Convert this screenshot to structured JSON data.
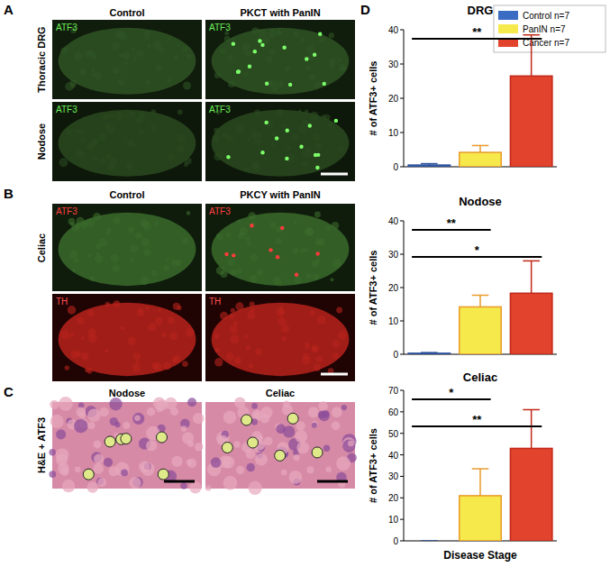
{
  "panels": {
    "A": {
      "label": "A",
      "columns": [
        "Control",
        "PKCT with PanIN"
      ],
      "rows": [
        "Thoracic DRG",
        "Nodose"
      ],
      "stain": "ATF3"
    },
    "B": {
      "label": "B",
      "columns": [
        "Control",
        "PKCY with PanIN"
      ],
      "row": "Celiac",
      "stains": [
        "ATF3",
        "TH"
      ]
    },
    "C": {
      "label": "C",
      "columns": [
        "Nodose",
        "Celiac"
      ],
      "row": "H&E + ATF3"
    },
    "D": {
      "label": "D"
    }
  },
  "legend_entries": [
    {
      "label": "Control n=7",
      "color": "#3b6cc4"
    },
    {
      "label": "PanIN n=7",
      "color": "#f5e94c"
    },
    {
      "label": "Cancer n=7",
      "color": "#e2432d"
    }
  ],
  "chart_data": [
    {
      "type": "bar",
      "title": "DRG",
      "y_label": "# of ATF3+ cells",
      "categories": [
        null,
        null,
        null
      ],
      "values": [
        0.5,
        4.2,
        26.5
      ],
      "errors": [
        0.4,
        2,
        12
      ],
      "colors": [
        "#3b6cc4",
        "#f5e94c",
        "#e2432d"
      ],
      "ylim": [
        0,
        40
      ],
      "yticks": [
        0,
        10,
        20,
        30,
        40
      ],
      "annotations": [
        {
          "between": [
            0,
            2
          ],
          "text": "**"
        }
      ]
    },
    {
      "type": "bar",
      "title": "Nodose",
      "y_label": "# of ATF3+ cells",
      "categories": [
        null,
        null,
        null
      ],
      "values": [
        0.3,
        14.2,
        18.3
      ],
      "errors": [
        0.2,
        3.5,
        9.7
      ],
      "colors": [
        "#3b6cc4",
        "#f5e94c",
        "#e2432d"
      ],
      "ylim": [
        0,
        40
      ],
      "yticks": [
        0,
        10,
        20,
        30,
        40
      ],
      "annotations": [
        {
          "between": [
            0,
            1
          ],
          "text": "**"
        },
        {
          "between": [
            0,
            2
          ],
          "text": "*"
        }
      ]
    },
    {
      "type": "bar",
      "title": "Celiac",
      "y_label": "# of ATF3+ cells",
      "x_label": "Disease Stage",
      "categories": [
        null,
        null,
        null
      ],
      "values": [
        0,
        21,
        43
      ],
      "errors": [
        0,
        12.5,
        18
      ],
      "colors": [
        "#3b6cc4",
        "#f5e94c",
        "#e2432d"
      ],
      "ylim": [
        0,
        70
      ],
      "yticks": [
        0,
        10,
        20,
        30,
        40,
        50,
        60,
        70
      ],
      "annotations": [
        {
          "between": [
            0,
            1
          ],
          "text": "*"
        },
        {
          "between": [
            0,
            2
          ],
          "text": "**"
        }
      ]
    }
  ]
}
